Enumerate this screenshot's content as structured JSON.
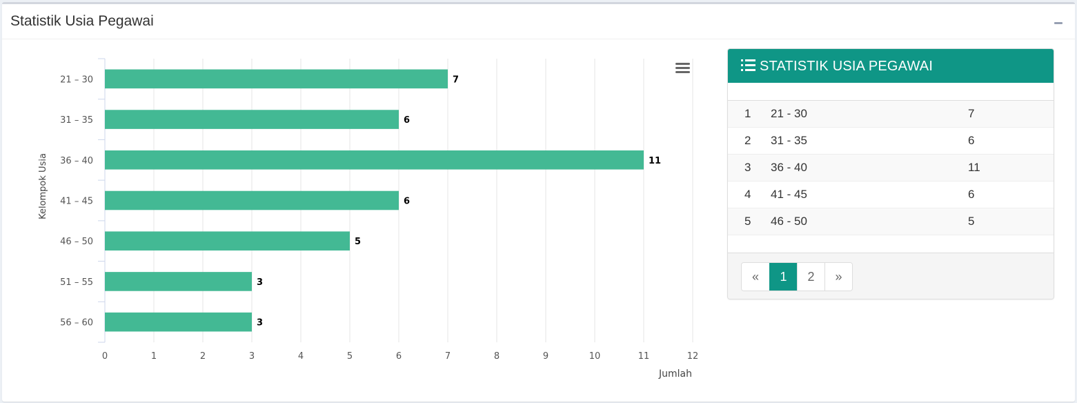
{
  "box": {
    "title": "Statistik Usia Pegawai"
  },
  "chart_data": {
    "type": "bar",
    "orientation": "horizontal",
    "categories": [
      "21 - 30",
      "31 - 35",
      "36 - 40",
      "41 - 45",
      "46 - 50",
      "51 - 55",
      "56 - 60"
    ],
    "values": [
      7,
      6,
      11,
      6,
      5,
      3,
      3
    ],
    "xlabel": "Jumlah",
    "ylabel": "Kelompok Usia",
    "xlim": [
      0,
      12
    ],
    "xticks": [
      "0",
      "1",
      "2",
      "3",
      "4",
      "5",
      "6",
      "7",
      "8",
      "9",
      "10",
      "11",
      "12"
    ],
    "grid": true,
    "data_labels": true,
    "bar_color": "#43b994"
  },
  "panel": {
    "title": "STATISTIK USIA PEGAWAI",
    "rows": [
      {
        "no": "1",
        "group": "21 - 30",
        "count": "7"
      },
      {
        "no": "2",
        "group": "31 - 35",
        "count": "6"
      },
      {
        "no": "3",
        "group": "36 - 40",
        "count": "11"
      },
      {
        "no": "4",
        "group": "41 - 45",
        "count": "6"
      },
      {
        "no": "5",
        "group": "46 - 50",
        "count": "5"
      }
    ],
    "pagination": {
      "prev": "«",
      "pages": [
        "1",
        "2"
      ],
      "next": "»",
      "active": "1"
    }
  },
  "colors": {
    "accent": "#0f9686",
    "bar": "#43b994"
  }
}
